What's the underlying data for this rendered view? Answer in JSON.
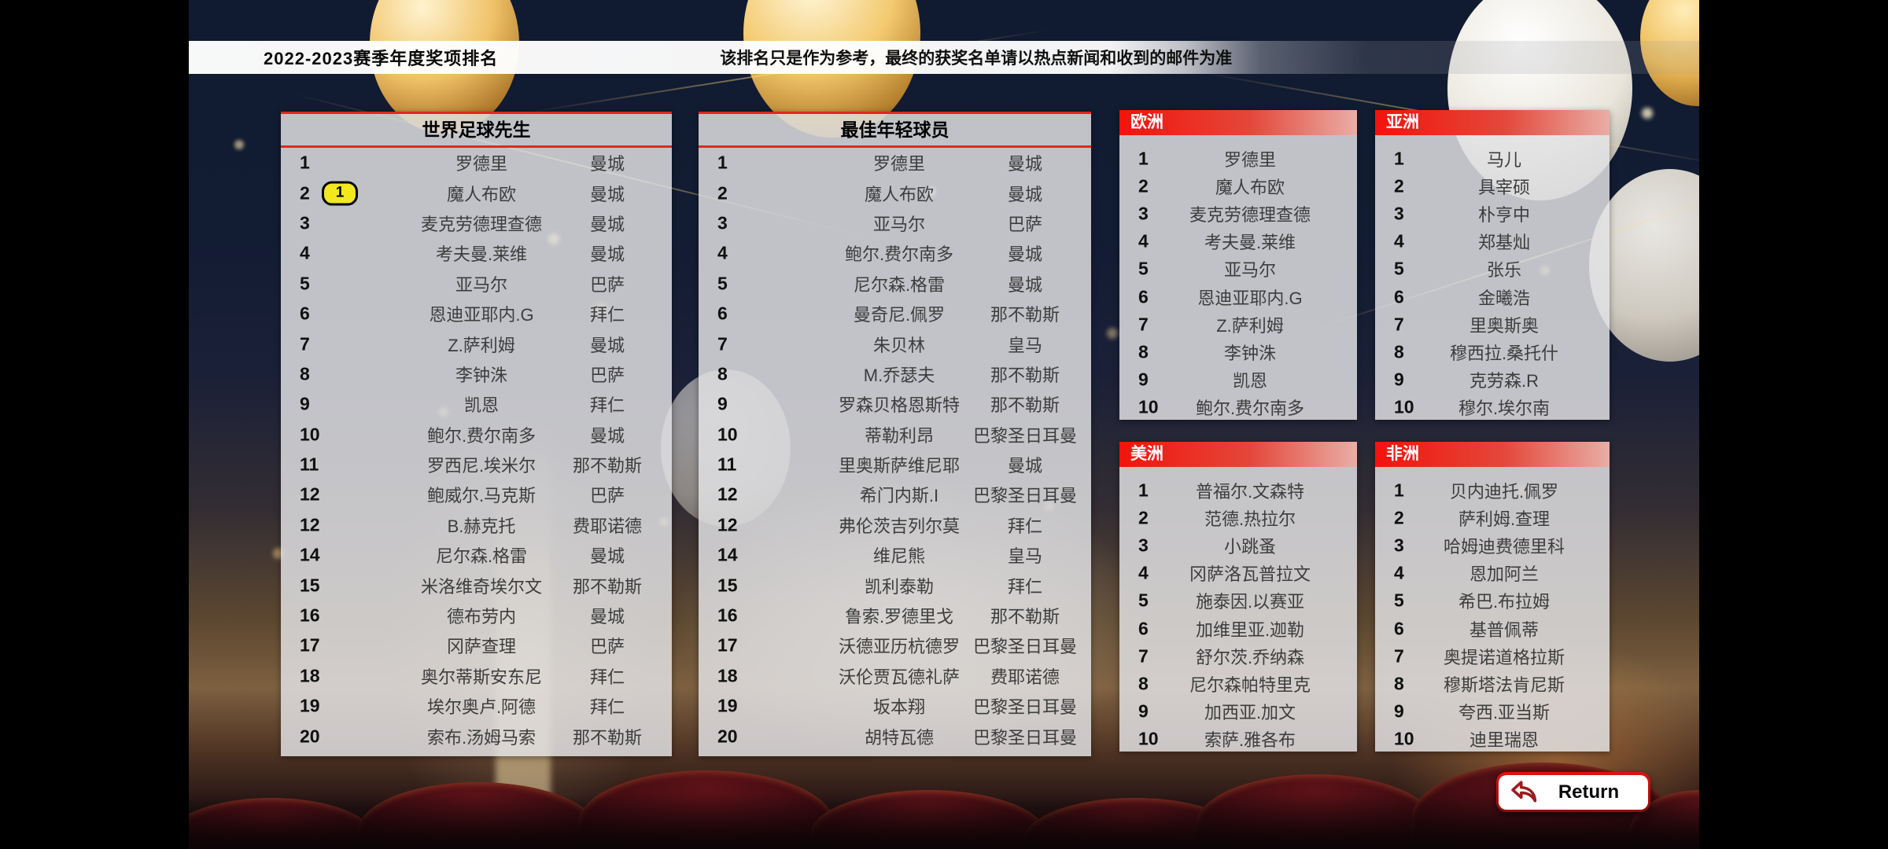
{
  "header": {
    "title": "2022-2023赛季年度奖项排名",
    "notice": "该排名只是作为参考，最终的获奖名单请以热点新闻和收到的邮件为准"
  },
  "colors": {
    "accent_red": "#e3271d",
    "panel_header_red": "#f2130c",
    "badge_yellow": "#f2e81f",
    "panel_bg": "rgba(226,226,229,0.84)"
  },
  "panels": {
    "world_best": {
      "title": "世界足球先生",
      "rows": [
        {
          "rank": "1",
          "name": "罗德里",
          "club": "曼城"
        },
        {
          "rank": "2",
          "name": "魔人布欧",
          "club": "曼城",
          "badge": "1"
        },
        {
          "rank": "3",
          "name": "麦克劳德理查德",
          "club": "曼城"
        },
        {
          "rank": "4",
          "name": "考夫曼.莱维",
          "club": "曼城"
        },
        {
          "rank": "5",
          "name": "亚马尔",
          "club": "巴萨"
        },
        {
          "rank": "6",
          "name": "恩迪亚耶内.G",
          "club": "拜仁"
        },
        {
          "rank": "7",
          "name": "Z.萨利姆",
          "club": "曼城"
        },
        {
          "rank": "8",
          "name": "李钟洙",
          "club": "巴萨"
        },
        {
          "rank": "9",
          "name": "凯恩",
          "club": "拜仁"
        },
        {
          "rank": "10",
          "name": "鲍尔.费尔南多",
          "club": "曼城"
        },
        {
          "rank": "11",
          "name": "罗西尼.埃米尔",
          "club": "那不勒斯"
        },
        {
          "rank": "12",
          "name": "鲍威尔.马克斯",
          "club": "巴萨"
        },
        {
          "rank": "12",
          "name": "B.赫克托",
          "club": "费耶诺德"
        },
        {
          "rank": "14",
          "name": "尼尔森.格雷",
          "club": "曼城"
        },
        {
          "rank": "15",
          "name": "米洛维奇埃尔文",
          "club": "那不勒斯"
        },
        {
          "rank": "16",
          "name": "德布劳内",
          "club": "曼城"
        },
        {
          "rank": "17",
          "name": "冈萨查理",
          "club": "巴萨"
        },
        {
          "rank": "18",
          "name": "奥尔蒂斯安东尼",
          "club": "拜仁"
        },
        {
          "rank": "19",
          "name": "埃尔奥卢.阿德",
          "club": "拜仁"
        },
        {
          "rank": "20",
          "name": "索布.汤姆马索",
          "club": "那不勒斯"
        }
      ]
    },
    "best_young": {
      "title": "最佳年轻球员",
      "rows": [
        {
          "rank": "1",
          "name": "罗德里",
          "club": "曼城"
        },
        {
          "rank": "2",
          "name": "魔人布欧",
          "club": "曼城"
        },
        {
          "rank": "3",
          "name": "亚马尔",
          "club": "巴萨"
        },
        {
          "rank": "4",
          "name": "鲍尔.费尔南多",
          "club": "曼城"
        },
        {
          "rank": "5",
          "name": "尼尔森.格雷",
          "club": "曼城"
        },
        {
          "rank": "6",
          "name": "曼奇尼.佩罗",
          "club": "那不勒斯"
        },
        {
          "rank": "7",
          "name": "朱贝林",
          "club": "皇马"
        },
        {
          "rank": "8",
          "name": "M.乔瑟夫",
          "club": "那不勒斯"
        },
        {
          "rank": "9",
          "name": "罗森贝格恩斯特",
          "club": "那不勒斯"
        },
        {
          "rank": "10",
          "name": "蒂勒利昂",
          "club": "巴黎圣日耳曼"
        },
        {
          "rank": "11",
          "name": "里奥斯萨维尼耶",
          "club": "曼城"
        },
        {
          "rank": "12",
          "name": "希门内斯.I",
          "club": "巴黎圣日耳曼"
        },
        {
          "rank": "12",
          "name": "弗伦茨吉列尔莫",
          "club": "拜仁"
        },
        {
          "rank": "14",
          "name": "维尼熊",
          "club": "皇马"
        },
        {
          "rank": "15",
          "name": "凯利泰勒",
          "club": "拜仁"
        },
        {
          "rank": "16",
          "name": "鲁索.罗德里戈",
          "club": "那不勒斯"
        },
        {
          "rank": "17",
          "name": "沃德亚历杭德罗",
          "club": "巴黎圣日耳曼"
        },
        {
          "rank": "18",
          "name": "沃伦贾瓦德礼萨",
          "club": "费耶诺德"
        },
        {
          "rank": "19",
          "name": "坂本翔",
          "club": "巴黎圣日耳曼"
        },
        {
          "rank": "20",
          "name": "胡特瓦德",
          "club": "巴黎圣日耳曼"
        }
      ]
    },
    "europe": {
      "title": "欧洲",
      "rows": [
        {
          "rank": "1",
          "name": "罗德里"
        },
        {
          "rank": "2",
          "name": "魔人布欧"
        },
        {
          "rank": "3",
          "name": "麦克劳德理查德"
        },
        {
          "rank": "4",
          "name": "考夫曼.莱维"
        },
        {
          "rank": "5",
          "name": "亚马尔"
        },
        {
          "rank": "6",
          "name": "恩迪亚耶内.G"
        },
        {
          "rank": "7",
          "name": "Z.萨利姆"
        },
        {
          "rank": "8",
          "name": "李钟洙"
        },
        {
          "rank": "9",
          "name": "凯恩"
        },
        {
          "rank": "10",
          "name": "鲍尔.费尔南多"
        }
      ]
    },
    "asia": {
      "title": "亚洲",
      "rows": [
        {
          "rank": "1",
          "name": "马儿"
        },
        {
          "rank": "2",
          "name": "具宰硕"
        },
        {
          "rank": "3",
          "name": "朴亨中"
        },
        {
          "rank": "4",
          "name": "郑基灿"
        },
        {
          "rank": "5",
          "name": "张乐"
        },
        {
          "rank": "6",
          "name": "金曦浩"
        },
        {
          "rank": "7",
          "name": "里奥斯奥"
        },
        {
          "rank": "8",
          "name": "穆西拉.桑托什"
        },
        {
          "rank": "9",
          "name": "克劳森.R"
        },
        {
          "rank": "10",
          "name": "穆尔.埃尔南"
        }
      ]
    },
    "americas": {
      "title": "美洲",
      "rows": [
        {
          "rank": "1",
          "name": "普福尔.文森特"
        },
        {
          "rank": "2",
          "name": "范德.热拉尔"
        },
        {
          "rank": "3",
          "name": "小跳蚤"
        },
        {
          "rank": "4",
          "name": "冈萨洛瓦普拉文"
        },
        {
          "rank": "5",
          "name": "施泰因.以赛亚"
        },
        {
          "rank": "6",
          "name": "加维里亚.迦勒"
        },
        {
          "rank": "7",
          "name": "舒尔茨.乔纳森"
        },
        {
          "rank": "8",
          "name": "尼尔森帕特里克"
        },
        {
          "rank": "9",
          "name": "加西亚.加文"
        },
        {
          "rank": "10",
          "name": "索萨.雅各布"
        }
      ]
    },
    "africa": {
      "title": "非洲",
      "rows": [
        {
          "rank": "1",
          "name": "贝内迪托.佩罗"
        },
        {
          "rank": "2",
          "name": "萨利姆.查理"
        },
        {
          "rank": "3",
          "name": "哈姆迪费德里科"
        },
        {
          "rank": "4",
          "name": "恩加阿兰"
        },
        {
          "rank": "5",
          "name": "希巴.布拉姆"
        },
        {
          "rank": "6",
          "name": "基普佩蒂"
        },
        {
          "rank": "7",
          "name": "奥提诺道格拉斯"
        },
        {
          "rank": "8",
          "name": "穆斯塔法肯尼斯"
        },
        {
          "rank": "9",
          "name": "夸西.亚当斯"
        },
        {
          "rank": "10",
          "name": "迪里瑞恩"
        }
      ]
    }
  },
  "return_button": {
    "label": "Return",
    "icon": "return-arrow-icon"
  }
}
